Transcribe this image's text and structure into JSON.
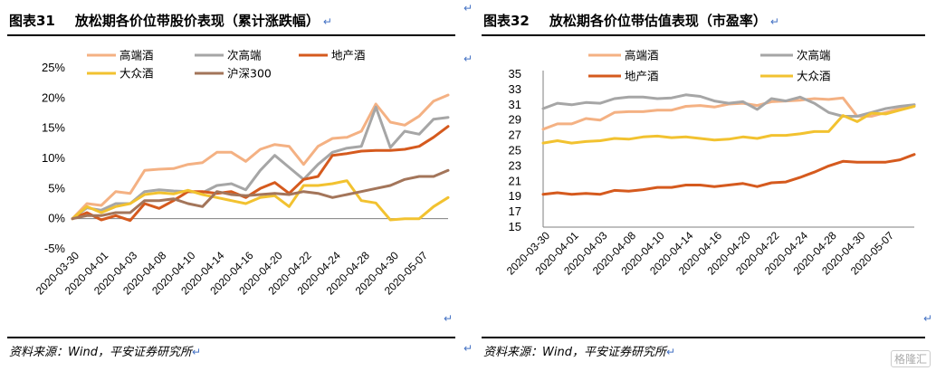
{
  "para_mark": "↵",
  "watermark": "格隆汇",
  "charts": [
    {
      "title_fig": "图表31",
      "title_text": "放松期各价位带股价表现（累计涨跌幅）",
      "source": "资料来源：Wind，平安证券研究所"
    },
    {
      "title_fig": "图表32",
      "title_text": "放松期各价位带估值表现（市盈率）",
      "source": "资料来源：Wind，平安证券研究所"
    }
  ],
  "chart_data": [
    {
      "type": "line",
      "title": "放松期各价位带股价表现（累计涨跌幅）",
      "y_unit": "%",
      "ylim": [
        -5,
        25
      ],
      "yticks": [
        -5,
        0,
        5,
        10,
        15,
        20,
        25
      ],
      "ytick_labels": [
        "-5%",
        "0%",
        "5%",
        "10%",
        "15%",
        "20%",
        "25%"
      ],
      "legend_placement": "top",
      "x_tick_labels": [
        "2020-03-30",
        "2020-04-01",
        "2020-04-03",
        "2020-04-08",
        "2020-04-10",
        "2020-04-14",
        "2020-04-16",
        "2020-04-20",
        "2020-04-22",
        "2020-04-24",
        "2020-04-28",
        "2020-04-30",
        "2020-05-07"
      ],
      "series": [
        {
          "name": "高端酒",
          "color": "#f4b183",
          "values": [
            0,
            2.5,
            2.2,
            4.5,
            4.2,
            8,
            8.2,
            8.3,
            9,
            9.3,
            11,
            11,
            9.5,
            11.5,
            12.3,
            12,
            9,
            12,
            13.3,
            13.5,
            14.5,
            19,
            16,
            15.5,
            17,
            19.5,
            20.5
          ]
        },
        {
          "name": "次高端",
          "color": "#a6a6a6",
          "values": [
            0,
            1.8,
            1.4,
            2.5,
            2.5,
            4.5,
            4.8,
            4.6,
            4.5,
            4.3,
            5.5,
            5.8,
            4.8,
            8,
            10.5,
            8.5,
            6.5,
            9,
            11,
            11.7,
            12,
            18.5,
            11.8,
            14.5,
            14,
            16.5,
            16.8
          ]
        },
        {
          "name": "地产酒",
          "color": "#d55a1e",
          "values": [
            0,
            1,
            -0.2,
            0.5,
            -0.3,
            2.5,
            1.7,
            3,
            4.5,
            4.5,
            4.2,
            4.5,
            3.5,
            5,
            6,
            4.2,
            6.5,
            7,
            10.5,
            10.8,
            11.2,
            11.3,
            11.3,
            11.5,
            12,
            13.5,
            15.3
          ]
        },
        {
          "name": "大众酒",
          "color": "#f2c230",
          "values": [
            0,
            2,
            1,
            2,
            2.5,
            4,
            4.3,
            4.1,
            4.7,
            4,
            3.5,
            3,
            2.5,
            3.5,
            3.8,
            2,
            5.5,
            5.5,
            5.8,
            6.3,
            3,
            2.6,
            -0.2,
            0,
            0,
            2,
            3.5
          ]
        },
        {
          "name": "沪深300",
          "color": "#a3755a",
          "values": [
            0,
            0.5,
            0.5,
            1,
            1,
            3,
            3,
            3.3,
            2.5,
            2,
            4.5,
            4,
            3.8,
            4,
            4.2,
            4,
            4.5,
            4.2,
            3.5,
            4,
            4.5,
            5,
            5.5,
            6.5,
            7,
            7,
            8
          ]
        }
      ]
    },
    {
      "type": "line",
      "title": "放松期各价位带估值表现（市盈率）",
      "ylim": [
        15,
        35
      ],
      "yticks": [
        15,
        17,
        19,
        21,
        23,
        25,
        27,
        29,
        31,
        33,
        35
      ],
      "ytick_labels": [
        "15",
        "17",
        "19",
        "21",
        "23",
        "25",
        "27",
        "29",
        "31",
        "33",
        "35"
      ],
      "legend_placement": "top",
      "x_tick_labels": [
        "2020-03-30",
        "2020-04-01",
        "2020-04-03",
        "2020-04-08",
        "2020-04-10",
        "2020-04-14",
        "2020-04-16",
        "2020-04-20",
        "2020-04-22",
        "2020-04-24",
        "2020-04-28",
        "2020-04-30",
        "2020-05-07"
      ],
      "series": [
        {
          "name": "高端酒",
          "color": "#f4b183",
          "values": [
            27.8,
            28.5,
            28.5,
            29.2,
            29,
            30,
            30.1,
            30.1,
            30.3,
            30.3,
            30.8,
            30.9,
            30.7,
            31.1,
            31.2,
            30.9,
            31.4,
            31.5,
            31.6,
            31.8,
            31.7,
            31.9,
            29.5,
            29.5,
            30,
            30.5,
            31
          ]
        },
        {
          "name": "次高端",
          "color": "#a6a6a6",
          "values": [
            30.5,
            31.2,
            31,
            31.3,
            31.2,
            31.8,
            32,
            32,
            31.8,
            31.9,
            32.3,
            32.1,
            31.5,
            31.2,
            31.4,
            30.4,
            31.8,
            31.5,
            32,
            31.2,
            30,
            29.5,
            29.5,
            30,
            30.5,
            30.8,
            31
          ]
        },
        {
          "name": "地产酒",
          "color": "#d55a1e",
          "values": [
            19.3,
            19.5,
            19.3,
            19.4,
            19.3,
            19.8,
            19.7,
            19.9,
            20.2,
            20.2,
            20.5,
            20.5,
            20.3,
            20.5,
            20.7,
            20.3,
            20.8,
            20.9,
            21.5,
            22.2,
            23,
            23.6,
            23.5,
            23.5,
            23.5,
            23.8,
            24.5
          ]
        },
        {
          "name": "大众酒",
          "color": "#f2c230",
          "values": [
            26,
            26.3,
            26,
            26.2,
            26.3,
            26.6,
            26.5,
            26.8,
            26.9,
            26.7,
            26.8,
            26.6,
            26.4,
            26.5,
            26.8,
            26.6,
            27,
            27,
            27.2,
            27.5,
            27.5,
            29.6,
            28.8,
            29.9,
            29.8,
            30.3,
            30.8
          ]
        }
      ]
    }
  ]
}
